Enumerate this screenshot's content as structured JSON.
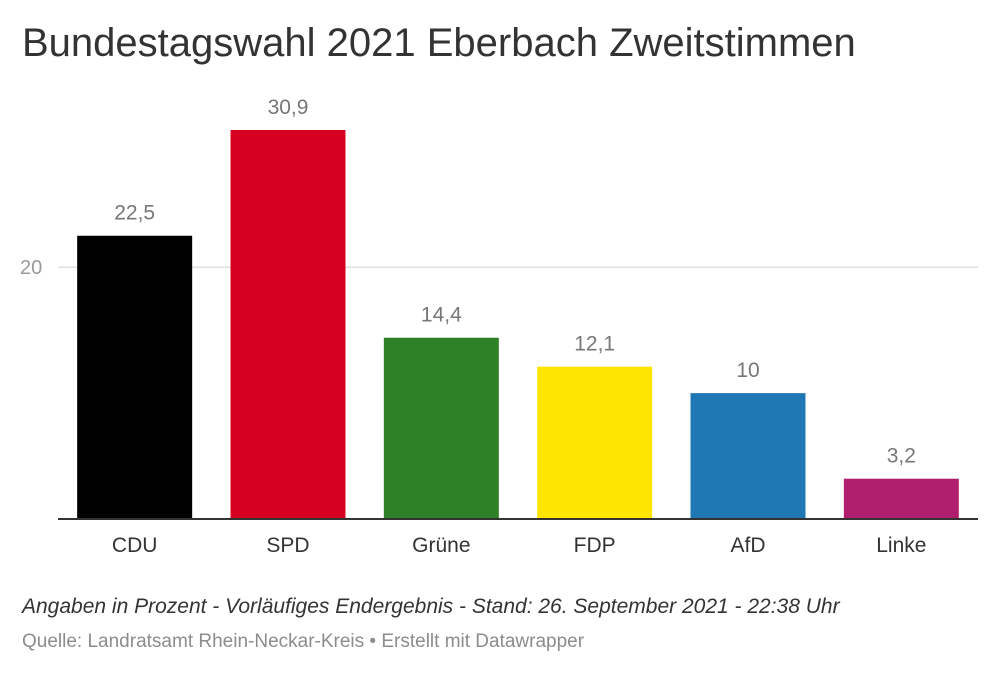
{
  "title": "Bundestagswahl 2021 Eberbach Zweitstimmen",
  "notes": "Angaben in Prozent - Vorläufiges Endergebnis - Stand: 26. September 2021 - 22:38 Uhr",
  "source": "Quelle: Landratsamt Rhein-Neckar-Kreis • Erstellt mit Datawrapper",
  "chart_data": {
    "type": "bar",
    "title": "Bundestagswahl 2021 Eberbach Zweitstimmen",
    "xlabel": "",
    "ylabel": "",
    "categories": [
      "CDU",
      "SPD",
      "Grüne",
      "FDP",
      "AfD",
      "Linke"
    ],
    "values": [
      22.5,
      30.9,
      14.4,
      12.1,
      10,
      3.2
    ],
    "value_labels": [
      "22,5",
      "30,9",
      "14,4",
      "12,1",
      "10",
      "3,2"
    ],
    "colors": [
      "#000000",
      "#d60021",
      "#2e8127",
      "#ffe500",
      "#1f77b4",
      "#b01f6e"
    ],
    "ylim": [
      0,
      30.9
    ],
    "yticks": [
      20
    ],
    "ytick_labels": [
      "20"
    ],
    "grid": true,
    "legend": "none"
  }
}
